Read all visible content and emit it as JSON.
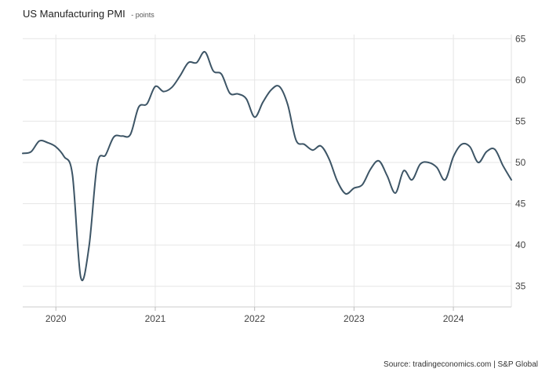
{
  "title": "US Manufacturing PMI",
  "subtitle": "- points",
  "source": "Source: tradingeconomics.com | S&P Global",
  "chart_data": {
    "type": "line",
    "title": "US Manufacturing PMI",
    "ylabel": "points",
    "xlabel": "",
    "ylim": [
      32.5,
      65.5
    ],
    "yticks": [
      35,
      40,
      45,
      50,
      55,
      60,
      65
    ],
    "xticks": [
      "2020",
      "2021",
      "2022",
      "2023",
      "2024"
    ],
    "line_color": "#3d5566",
    "grid": true,
    "series": [
      {
        "x": [
          "2019-09",
          "2019-10",
          "2019-11",
          "2019-12",
          "2020-01",
          "2020-02",
          "2020-03",
          "2020-04",
          "2020-05",
          "2020-06",
          "2020-07",
          "2020-08",
          "2020-09",
          "2020-10",
          "2020-11",
          "2020-12",
          "2021-01",
          "2021-02",
          "2021-03",
          "2021-04",
          "2021-05",
          "2021-06",
          "2021-07",
          "2021-08",
          "2021-09",
          "2021-10",
          "2021-11",
          "2021-12",
          "2022-01",
          "2022-02",
          "2022-03",
          "2022-04",
          "2022-05",
          "2022-06",
          "2022-07",
          "2022-08",
          "2022-09",
          "2022-10",
          "2022-11",
          "2022-12",
          "2023-01",
          "2023-02",
          "2023-03",
          "2023-04",
          "2023-05",
          "2023-06",
          "2023-07",
          "2023-08",
          "2023-09",
          "2023-10",
          "2023-11",
          "2023-12",
          "2024-01",
          "2024-02",
          "2024-03",
          "2024-04",
          "2024-05",
          "2024-06",
          "2024-07",
          "2024-08"
        ],
        "values": [
          51.1,
          51.3,
          52.6,
          52.4,
          51.9,
          50.7,
          48.5,
          36.1,
          39.8,
          49.8,
          50.9,
          53.1,
          53.2,
          53.4,
          56.7,
          57.1,
          59.2,
          58.6,
          59.1,
          60.5,
          62.1,
          62.1,
          63.4,
          61.1,
          60.7,
          58.4,
          58.3,
          57.7,
          55.5,
          57.3,
          58.8,
          59.2,
          57.0,
          52.7,
          52.2,
          51.5,
          52.0,
          50.4,
          47.7,
          46.2,
          46.9,
          47.3,
          49.2,
          50.2,
          48.4,
          46.3,
          49.0,
          47.9,
          49.8,
          50.0,
          49.4,
          47.9,
          50.7,
          52.2,
          51.9,
          50.0,
          51.3,
          51.6,
          49.6,
          47.9
        ]
      }
    ]
  }
}
